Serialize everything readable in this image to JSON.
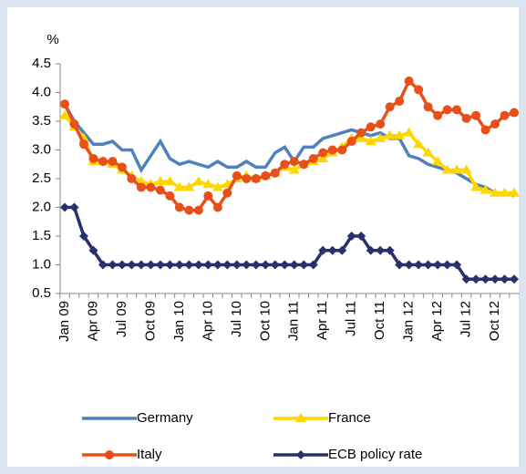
{
  "chart_data": {
    "type": "line",
    "y_label": "%",
    "categories": [
      "Jan 09",
      null,
      null,
      "Apr 09",
      null,
      null,
      "Jul 09",
      null,
      null,
      "Oct 09",
      null,
      null,
      "Jan 10",
      null,
      null,
      "Apr 10",
      null,
      null,
      "Jul 10",
      null,
      null,
      "Oct 10",
      null,
      null,
      "Jan 11",
      null,
      null,
      "Apr 11",
      null,
      null,
      "Jul 11",
      null,
      null,
      "Oct 11",
      null,
      null,
      "Jan 12",
      null,
      null,
      "Apr 12",
      null,
      null,
      "Jul 12",
      null,
      null,
      "Oct 12",
      null,
      null
    ],
    "ylim": [
      0.5,
      4.5
    ],
    "yticks": [
      {
        "value": 0.5,
        "label": "0.5"
      },
      {
        "value": 1,
        "label": "1.0"
      },
      {
        "value": 1.5,
        "label": "1.5"
      },
      {
        "value": 2,
        "label": "2.0"
      },
      {
        "value": 2.5,
        "label": "2.5"
      },
      {
        "value": 3,
        "label": "3.0"
      },
      {
        "value": 3.5,
        "label": "3.5"
      },
      {
        "value": 4,
        "label": "4.0"
      },
      {
        "value": 4.5,
        "label": "4.5"
      }
    ],
    "series": [
      {
        "name": "Germany",
        "color": "#4f81bd",
        "marker": "none",
        "values": [
          3.8,
          3.5,
          3.3,
          3.1,
          3.1,
          3.15,
          3.0,
          3.0,
          2.65,
          2.9,
          3.15,
          2.85,
          2.75,
          2.8,
          2.75,
          2.7,
          2.8,
          2.7,
          2.7,
          2.8,
          2.7,
          2.7,
          2.95,
          3.05,
          2.8,
          3.05,
          3.05,
          3.2,
          3.25,
          3.3,
          3.35,
          3.3,
          3.25,
          3.3,
          3.2,
          3.2,
          2.9,
          2.85,
          2.75,
          2.7,
          2.65,
          2.6,
          2.5,
          2.4,
          2.35,
          2.25,
          2.25,
          2.2
        ]
      },
      {
        "name": "France",
        "color": "#ffd700",
        "marker": "triangle",
        "values": [
          3.6,
          3.4,
          3.2,
          2.8,
          2.8,
          2.75,
          2.65,
          2.55,
          2.45,
          2.4,
          2.45,
          2.45,
          2.35,
          2.35,
          2.45,
          2.4,
          2.35,
          2.4,
          2.5,
          2.55,
          2.5,
          2.55,
          2.6,
          2.7,
          2.65,
          2.75,
          2.8,
          2.85,
          2.95,
          3.05,
          3.2,
          3.2,
          3.15,
          3.2,
          3.25,
          3.25,
          3.3,
          3.1,
          2.95,
          2.8,
          2.65,
          2.65,
          2.65,
          2.35,
          2.3,
          2.25,
          2.25,
          2.25
        ]
      },
      {
        "name": "Italy",
        "color": "#e8501a",
        "marker": "circle",
        "values": [
          3.8,
          3.45,
          3.1,
          2.85,
          2.8,
          2.8,
          2.7,
          2.5,
          2.35,
          2.35,
          2.3,
          2.2,
          2.0,
          1.95,
          1.95,
          2.2,
          2.0,
          2.25,
          2.55,
          2.5,
          2.5,
          2.55,
          2.6,
          2.75,
          2.8,
          2.75,
          2.85,
          2.95,
          3.0,
          3.0,
          3.15,
          3.3,
          3.4,
          3.45,
          3.75,
          3.85,
          4.2,
          4.05,
          3.75,
          3.6,
          3.7,
          3.7,
          3.55,
          3.6,
          3.35,
          3.45,
          3.6,
          3.65
        ]
      },
      {
        "name": "ECB policy rate",
        "color": "#28306e",
        "marker": "diamond",
        "values": [
          2.0,
          2.0,
          1.5,
          1.25,
          1.0,
          1.0,
          1.0,
          1.0,
          1.0,
          1.0,
          1.0,
          1.0,
          1.0,
          1.0,
          1.0,
          1.0,
          1.0,
          1.0,
          1.0,
          1.0,
          1.0,
          1.0,
          1.0,
          1.0,
          1.0,
          1.0,
          1.0,
          1.25,
          1.25,
          1.25,
          1.5,
          1.5,
          1.25,
          1.25,
          1.25,
          1.0,
          1.0,
          1.0,
          1.0,
          1.0,
          1.0,
          1.0,
          0.75,
          0.75,
          0.75,
          0.75,
          0.75,
          0.75
        ]
      }
    ]
  }
}
